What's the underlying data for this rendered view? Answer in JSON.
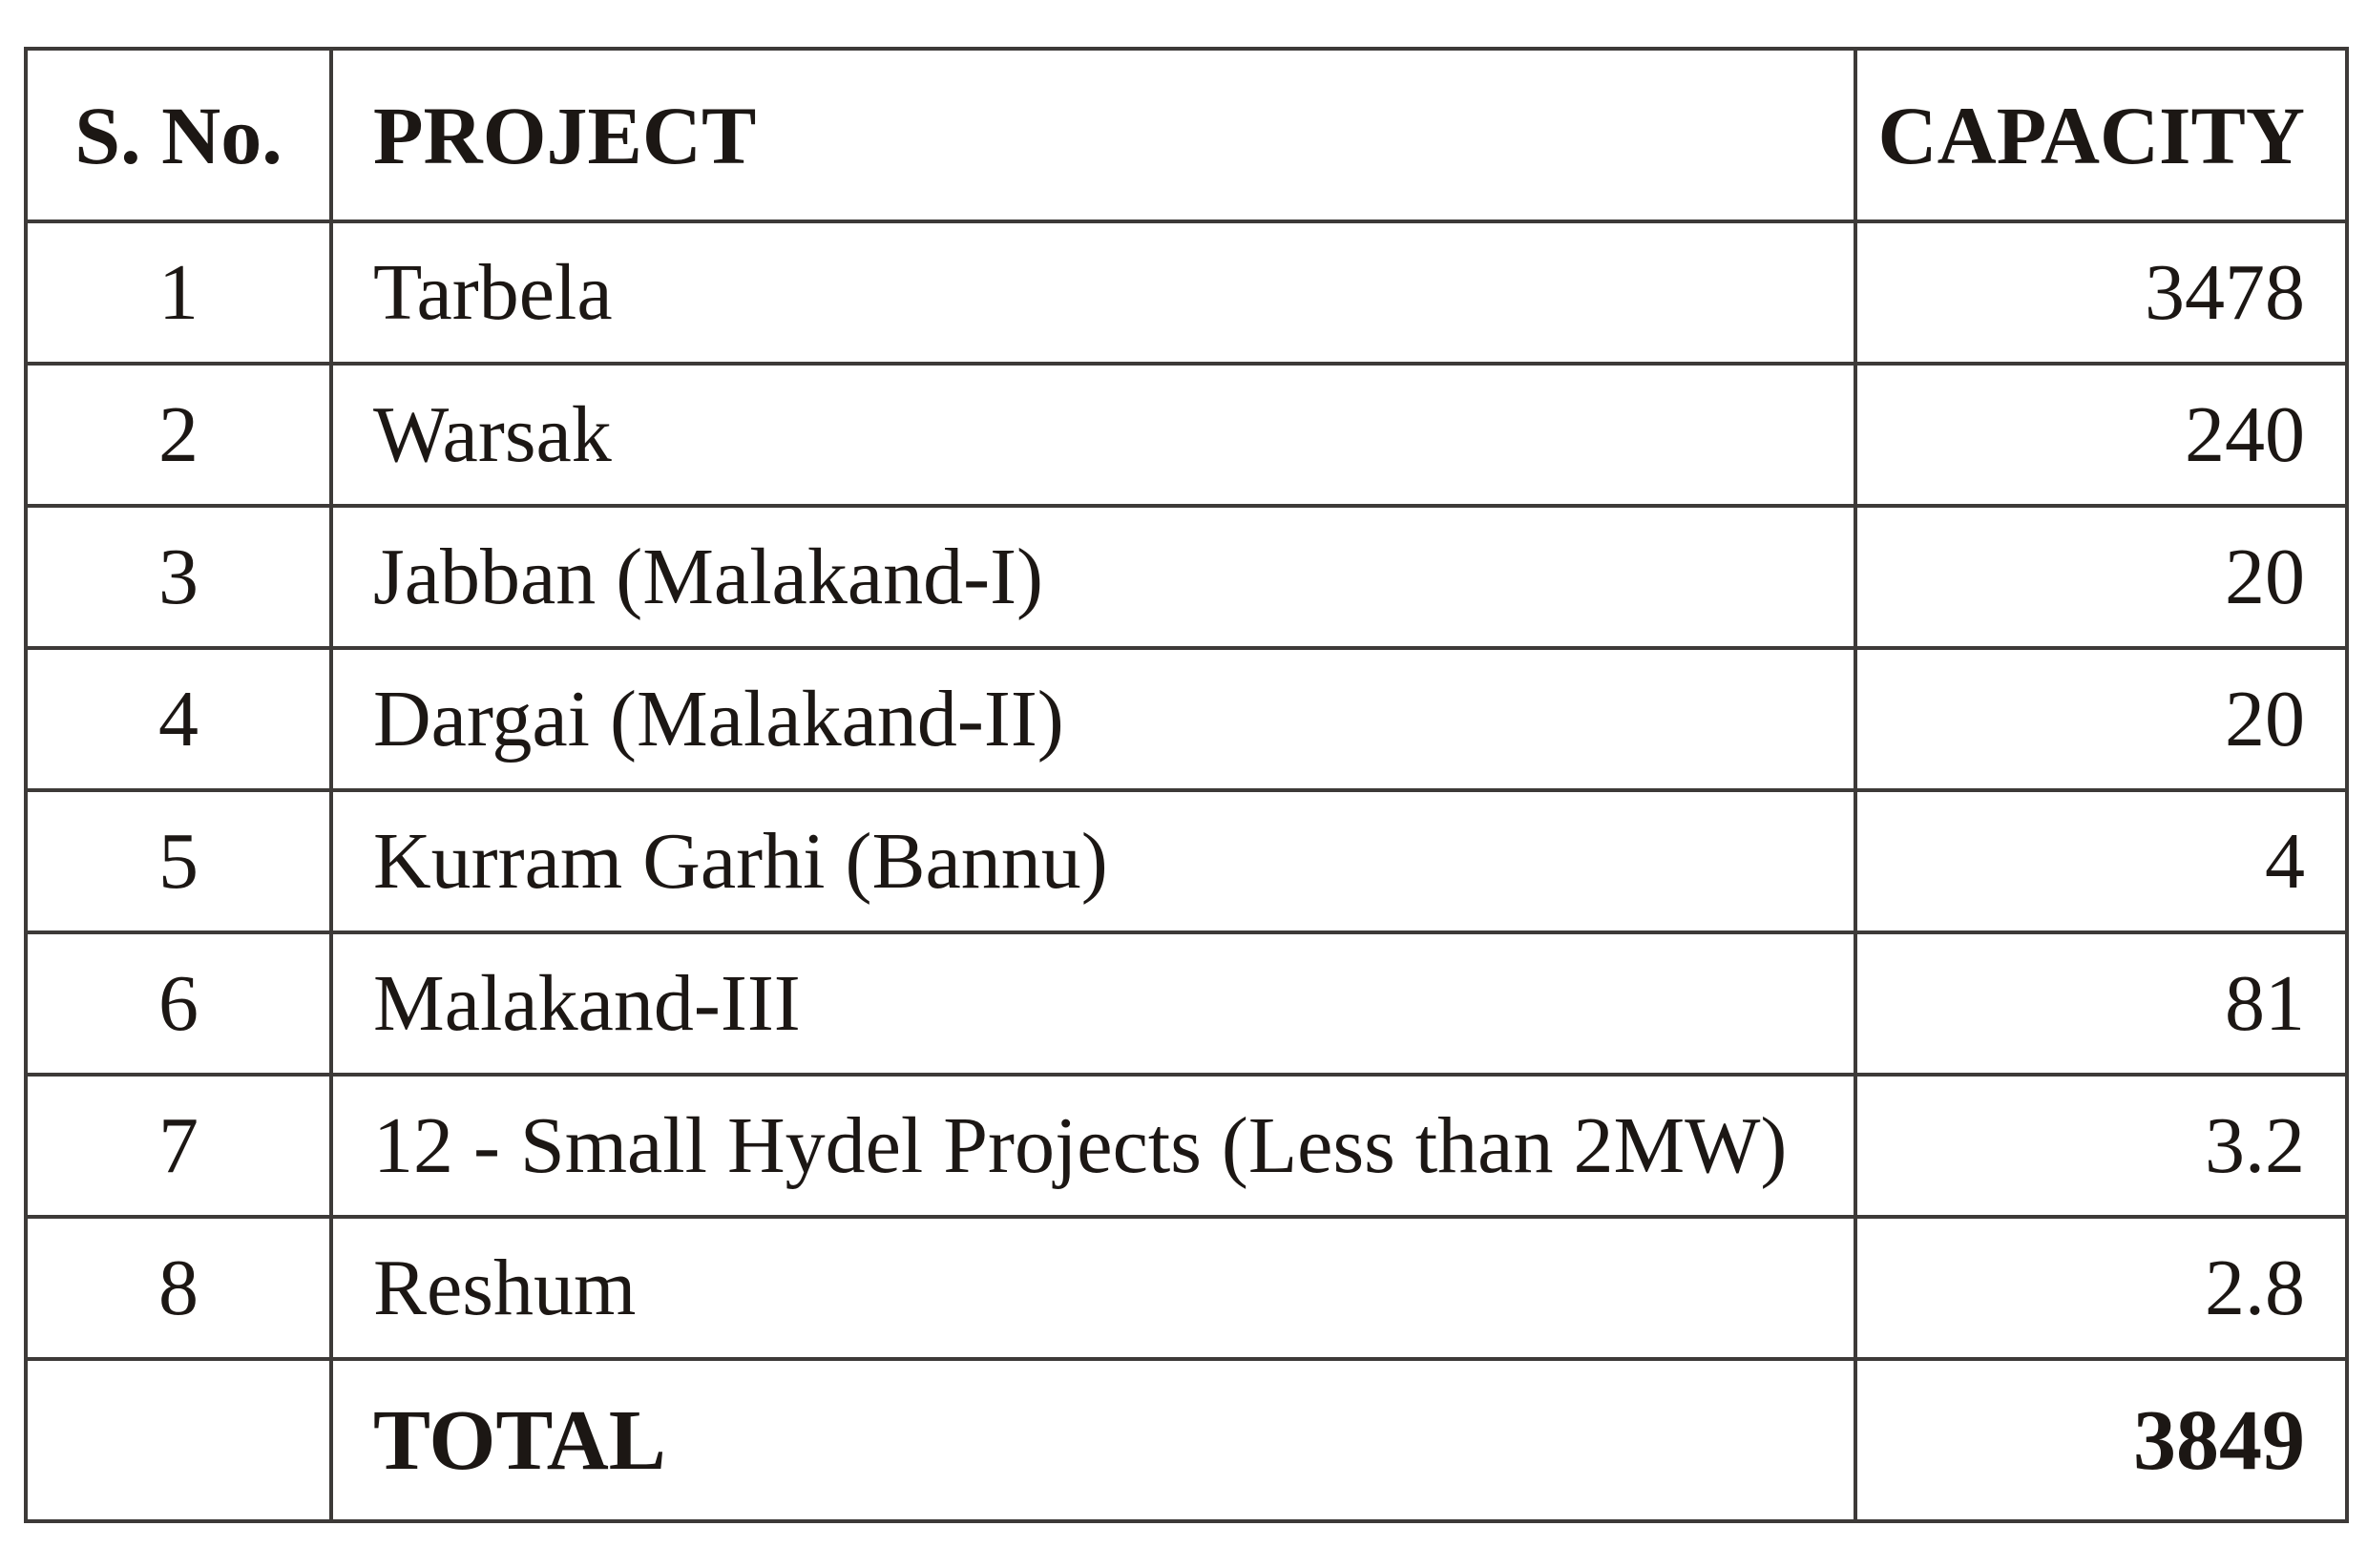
{
  "table": {
    "headers": {
      "sno": "S. No.",
      "project": "PROJECT",
      "capacity": "CAPACITY"
    },
    "rows": [
      {
        "sno": "1",
        "project": "Tarbela",
        "capacity": "3478"
      },
      {
        "sno": "2",
        "project": "Warsak",
        "capacity": "240"
      },
      {
        "sno": "3",
        "project": "Jabban (Malakand-I)",
        "capacity": "20"
      },
      {
        "sno": "4",
        "project": "Dargai (Malakand-II)",
        "capacity": "20"
      },
      {
        "sno": "5",
        "project": "Kurram Garhi (Bannu)",
        "capacity": "4"
      },
      {
        "sno": "6",
        "project": "Malakand-III",
        "capacity": "81"
      },
      {
        "sno": "7",
        "project": "12 - Small Hydel Projects (Less than 2MW)",
        "capacity": "3.2"
      },
      {
        "sno": "8",
        "project": "Reshum",
        "capacity": "2.8"
      }
    ],
    "total": {
      "label": "TOTAL",
      "value": "3849"
    }
  }
}
